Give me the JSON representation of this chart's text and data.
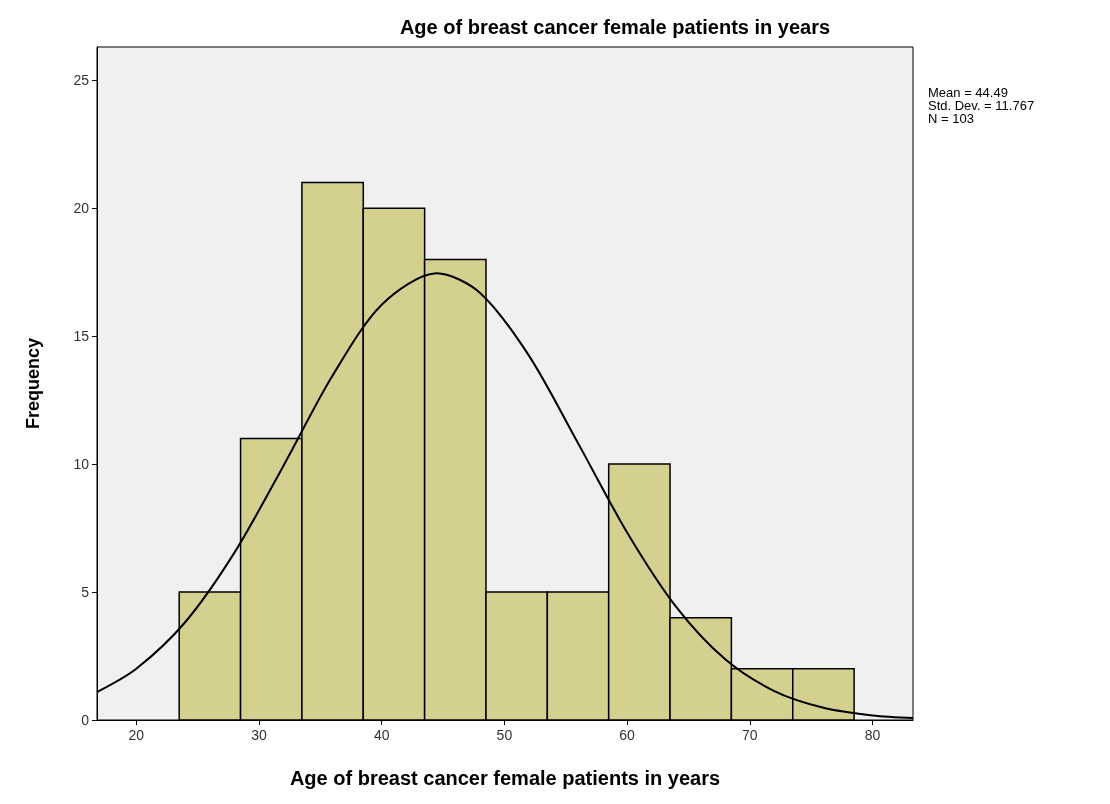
{
  "chart_data": {
    "type": "histogram",
    "title": "Age of breast cancer female patients in years",
    "xlabel": "Age of breast cancer female patients in years",
    "ylabel": "Frequency",
    "annotations": [
      "Mean = 44.49",
      "Std. Dev. = 11.767",
      "N = 103"
    ],
    "xlim": [
      16.8,
      83.3
    ],
    "xticks": [
      20,
      30,
      40,
      50,
      60,
      70,
      80
    ],
    "ylim": [
      0,
      26.3
    ],
    "yticks": [
      0,
      5,
      10,
      15,
      20,
      25
    ],
    "grid": false,
    "marker": "none",
    "series": [
      {
        "color": "#d4d08f",
        "bins": [
          23.5,
          28.5,
          33.5,
          38.5,
          43.5,
          48.5,
          53.5,
          58.5,
          63.5,
          68.5,
          73.5,
          78.5
        ],
        "values": [
          5,
          11,
          21,
          20,
          18,
          5,
          5,
          10,
          4,
          2,
          2
        ]
      },
      {
        "type": "line",
        "color": "#000000",
        "x": [
          16.8,
          20,
          24,
          28,
          32,
          36,
          40,
          44.49,
          48,
          52,
          56,
          60,
          64,
          68,
          72,
          76,
          80,
          83.3
        ],
        "values": [
          1.09,
          2.0,
          3.83,
          6.54,
          9.94,
          13.46,
          16.23,
          17.46,
          16.7,
          14.24,
          10.82,
          7.33,
          4.42,
          2.37,
          1.13,
          0.48,
          0.18,
          0.08
        ]
      }
    ]
  }
}
